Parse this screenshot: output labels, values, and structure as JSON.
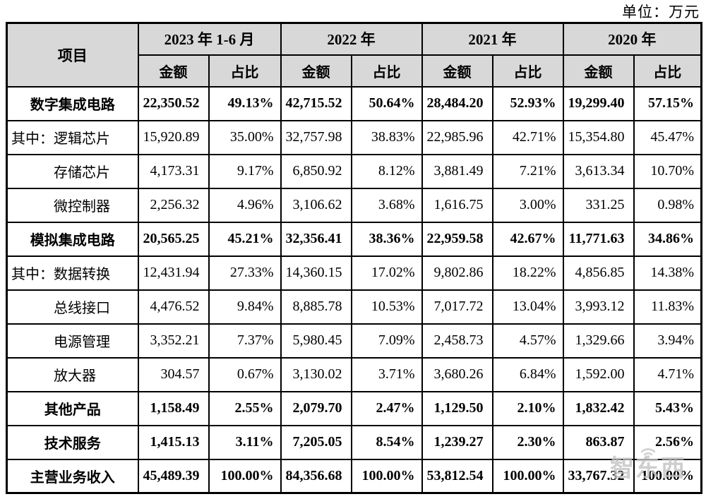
{
  "unit_label": "单位：万元",
  "watermark": {
    "text": "智东西"
  },
  "colors": {
    "header_bg": "#d8d8d8",
    "border": "#000000",
    "watermark_gray": "#c3c3c3"
  },
  "table": {
    "item_header": "项目",
    "periods": [
      "2023 年 1-6 月",
      "2022 年",
      "2021 年",
      "2020 年"
    ],
    "sub_headers": {
      "amount": "金额",
      "ratio": "占比"
    },
    "rows": [
      {
        "label": "数字集成电路",
        "style": "section",
        "values": [
          "22,350.52",
          "49.13%",
          "42,715.52",
          "50.64%",
          "28,484.20",
          "52.93%",
          "19,299.40",
          "57.15%"
        ]
      },
      {
        "label": "其中：逻辑芯片",
        "style": "subfirst",
        "values": [
          "15,920.89",
          "35.00%",
          "32,757.98",
          "38.83%",
          "22,985.96",
          "42.71%",
          "15,354.80",
          "45.47%"
        ]
      },
      {
        "label": "存储芯片",
        "style": "sub",
        "values": [
          "4,173.31",
          "9.17%",
          "6,850.92",
          "8.12%",
          "3,881.49",
          "7.21%",
          "3,613.34",
          "10.70%"
        ]
      },
      {
        "label": "微控制器",
        "style": "sub",
        "values": [
          "2,256.32",
          "4.96%",
          "3,106.62",
          "3.68%",
          "1,616.75",
          "3.00%",
          "331.25",
          "0.98%"
        ]
      },
      {
        "label": "模拟集成电路",
        "style": "section",
        "values": [
          "20,565.25",
          "45.21%",
          "32,356.41",
          "38.36%",
          "22,959.58",
          "42.67%",
          "11,771.63",
          "34.86%"
        ]
      },
      {
        "label": "其中：数据转换",
        "style": "subfirst",
        "values": [
          "12,431.94",
          "27.33%",
          "14,360.15",
          "17.02%",
          "9,802.86",
          "18.22%",
          "4,856.85",
          "14.38%"
        ]
      },
      {
        "label": "总线接口",
        "style": "sub",
        "values": [
          "4,476.52",
          "9.84%",
          "8,885.78",
          "10.53%",
          "7,017.72",
          "13.04%",
          "3,993.12",
          "11.83%"
        ]
      },
      {
        "label": "电源管理",
        "style": "sub",
        "values": [
          "3,352.21",
          "7.37%",
          "5,980.45",
          "7.09%",
          "2,458.73",
          "4.57%",
          "1,329.66",
          "3.94%"
        ]
      },
      {
        "label": "放大器",
        "style": "sub",
        "values": [
          "304.57",
          "0.67%",
          "3,130.02",
          "3.71%",
          "3,680.26",
          "6.84%",
          "1,592.00",
          "4.71%"
        ]
      },
      {
        "label": "其他产品",
        "style": "section",
        "values": [
          "1,158.49",
          "2.55%",
          "2,079.70",
          "2.47%",
          "1,129.50",
          "2.10%",
          "1,832.42",
          "5.43%"
        ]
      },
      {
        "label": "技术服务",
        "style": "section",
        "values": [
          "1,415.13",
          "3.11%",
          "7,205.05",
          "8.54%",
          "1,239.27",
          "2.30%",
          "863.87",
          "2.56%"
        ]
      },
      {
        "label": "主营业务收入",
        "style": "section",
        "values": [
          "45,489.39",
          "100.00%",
          "84,356.68",
          "100.00%",
          "53,812.54",
          "100.00%",
          "33,767.32",
          "100.00%"
        ]
      }
    ]
  }
}
